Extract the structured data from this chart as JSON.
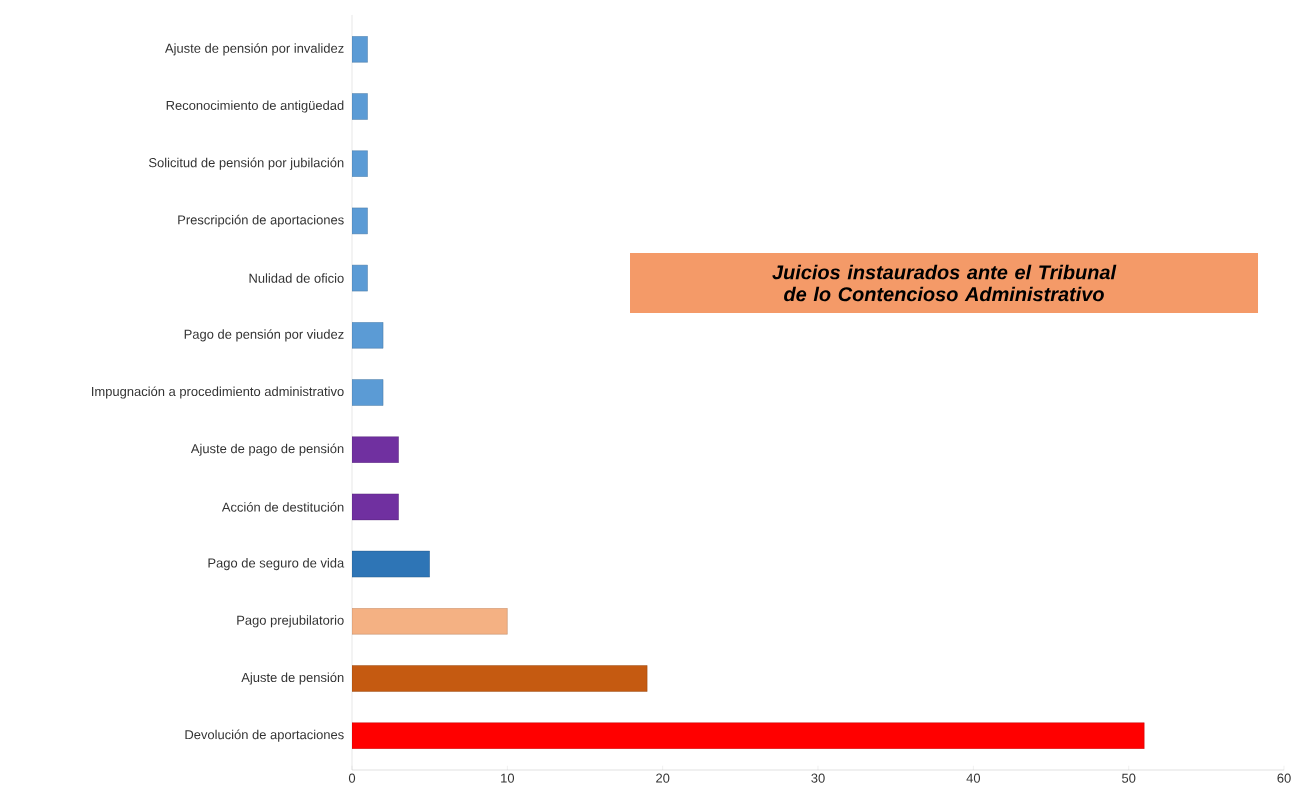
{
  "chart_data": {
    "type": "bar",
    "orientation": "horizontal",
    "title": "Juicios instaurados ante el Tribunal de lo Contencioso Administrativo",
    "categories": [
      "Ajuste de pensión por invalidez",
      "Reconocimiento de antigüedad",
      "Solicitud de pensión por jubilación",
      "Prescripción de aportaciones",
      "Nulidad de oficio",
      "Pago de pensión por viudez",
      "Impugnación a procedimiento administrativo",
      "Ajuste de pago de pensión",
      "Acción de destitución",
      "Pago de seguro de vida",
      "Pago prejubilatorio",
      "Ajuste de pensión",
      "Devolución de aportaciones"
    ],
    "values": [
      1,
      1,
      1,
      1,
      1,
      2,
      2,
      3,
      3,
      5,
      10,
      19,
      51
    ],
    "colors": [
      "#5b9bd5",
      "#5b9bd5",
      "#5b9bd5",
      "#5b9bd5",
      "#5b9bd5",
      "#5b9bd5",
      "#5b9bd5",
      "#7030a0",
      "#7030a0",
      "#2e75b6",
      "#f4b183",
      "#c55a11",
      "#ff0000"
    ],
    "xlim": [
      0,
      60
    ],
    "xticks": [
      0,
      10,
      20,
      30,
      40,
      50,
      60
    ],
    "grid": false
  }
}
